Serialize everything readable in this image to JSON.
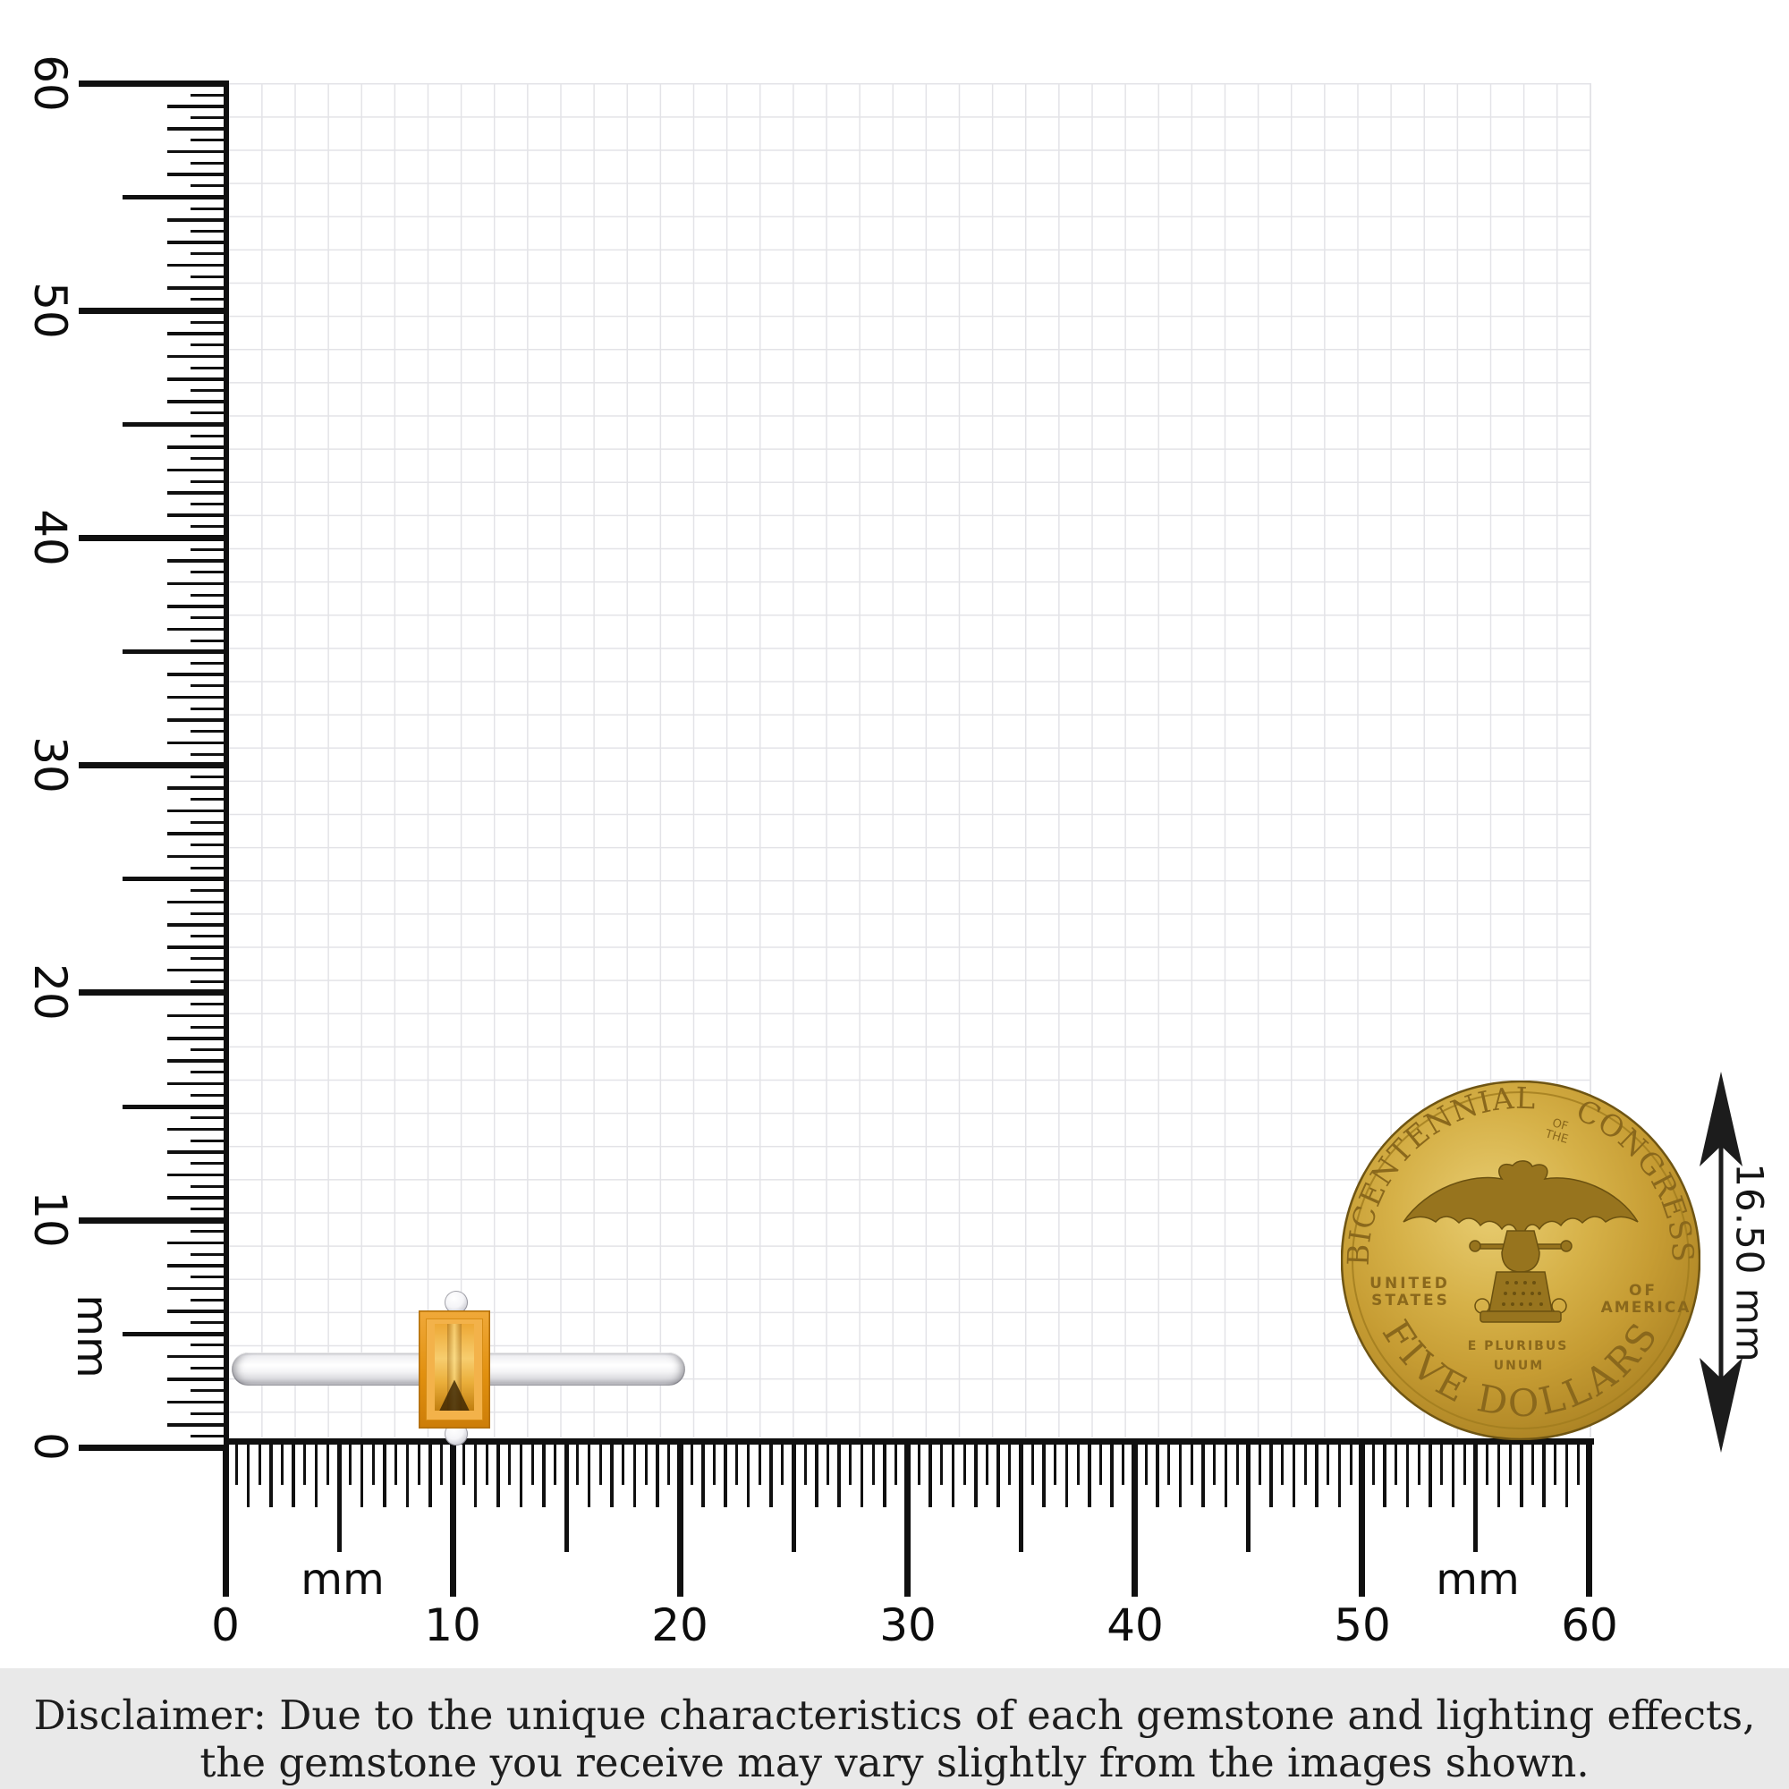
{
  "page": {
    "background": "#ffffff"
  },
  "rulers": {
    "unit": "mm",
    "left": {
      "labels": [
        "60",
        "50",
        "40",
        "30",
        "20",
        "10",
        "0"
      ]
    },
    "bottom": {
      "labels": [
        "0",
        "10",
        "20",
        "30",
        "40",
        "50",
        "60"
      ]
    }
  },
  "measurement": {
    "label": "16.50 mm"
  },
  "coin": {
    "arc_top_left": "BICENTENNIAL",
    "arc_top_small_line1": "OF",
    "arc_top_small_line2": "THE",
    "arc_top_right": "CONGRESS",
    "left_line1": "UNITED",
    "left_line2": "STATES",
    "right_line1": "OF",
    "right_line2": "AMERICA",
    "motto_line1": "E PLURIBUS",
    "motto_line2": "UNUM",
    "arc_bottom": "FIVE DOLLARS"
  },
  "disclaimer": {
    "line1": "Disclaimer: Due to the unique characteristics of each gemstone and lighting effects,",
    "line2": "the gemstone you receive may vary slightly from the images shown."
  },
  "colors": {
    "gold": "#c69c33",
    "gem_orange": "#e89a1f",
    "metal_silver": "#ececef",
    "tick_black": "#101010",
    "grid_line": "#e3e3e7",
    "disclaimer_bg": "#e9e9e9"
  }
}
